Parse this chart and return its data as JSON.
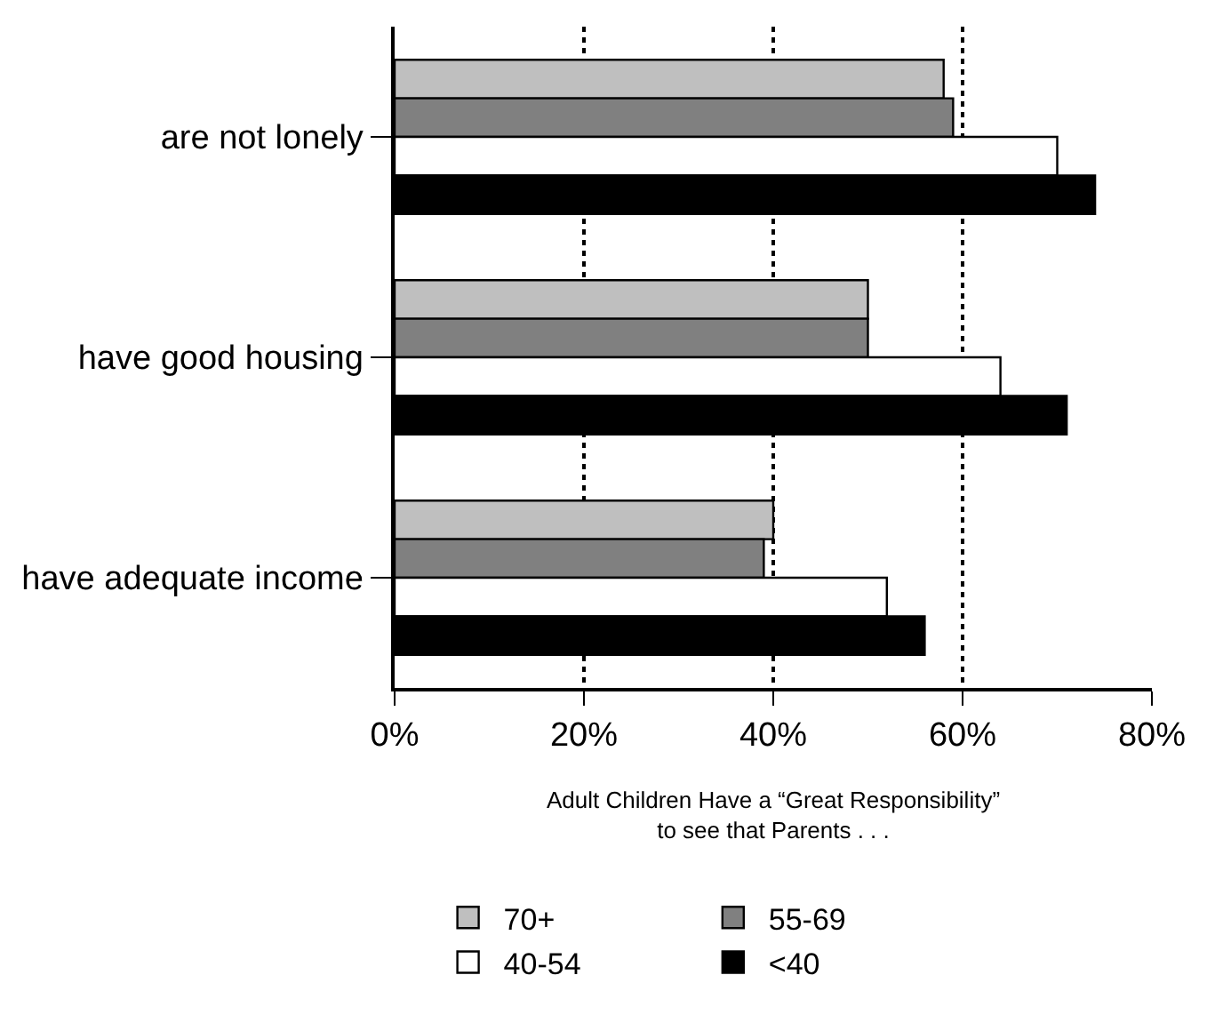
{
  "chart_data": {
    "type": "bar",
    "orientation": "horizontal",
    "xlabel": "Adult Children Have a “Great Responsibility”\nto see that Parents . . .",
    "categories": [
      "are not lonely",
      "have good housing",
      "have adequate income"
    ],
    "series": [
      {
        "name": "70+",
        "color": "#bfbfbf",
        "values": [
          58,
          50,
          40
        ]
      },
      {
        "name": "55-69",
        "color": "#808080",
        "values": [
          59,
          50,
          39
        ]
      },
      {
        "name": "40-54",
        "color": "#ffffff",
        "values": [
          70,
          64,
          52
        ]
      },
      {
        "name": "<40",
        "color": "#000000",
        "values": [
          74,
          71,
          56
        ]
      }
    ],
    "xlim": [
      0,
      80
    ],
    "xticks": [
      {
        "value": 0,
        "label": "0%"
      },
      {
        "value": 20,
        "label": "20%"
      },
      {
        "value": 40,
        "label": "40%"
      },
      {
        "value": 60,
        "label": "60%"
      },
      {
        "value": 80,
        "label": "80%"
      }
    ],
    "grid": "x",
    "legend": "bottom"
  }
}
